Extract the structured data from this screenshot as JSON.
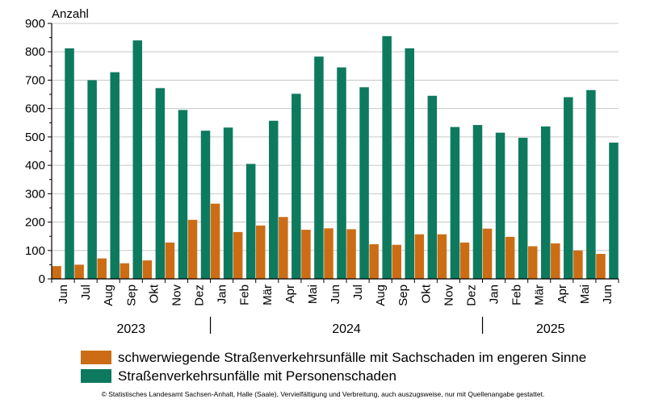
{
  "chart_data": {
    "type": "bar",
    "ylabel": "Anzahl",
    "ylim": [
      0,
      900
    ],
    "yticks": [
      0,
      100,
      200,
      300,
      400,
      500,
      600,
      700,
      800,
      900
    ],
    "grid": true,
    "legend_position": "bottom",
    "categories": [
      "Jun",
      "Jul",
      "Aug",
      "Sep",
      "Okt",
      "Nov",
      "Dez",
      "Jan",
      "Feb",
      "Mär",
      "Apr",
      "Mai",
      "Jun",
      "Jul",
      "Aug",
      "Sep",
      "Okt",
      "Nov",
      "Dez",
      "Jan",
      "Feb",
      "Mär",
      "Apr",
      "Mai",
      "Jun"
    ],
    "years": [
      {
        "label": "2023",
        "start": 0,
        "end": 6
      },
      {
        "label": "2024",
        "start": 7,
        "end": 18
      },
      {
        "label": "2025",
        "start": 19,
        "end": 24
      }
    ],
    "series": [
      {
        "name": "schwerwiegende Straßenverkehrsunfälle mit Sachschaden im engeren Sinne",
        "color": "#cc6d16",
        "values": [
          45,
          50,
          72,
          55,
          65,
          128,
          208,
          265,
          165,
          188,
          218,
          173,
          178,
          175,
          122,
          120,
          157,
          157,
          128,
          177,
          148,
          115,
          125,
          100,
          88
        ]
      },
      {
        "name": "Straßenverkehrsunfälle mit Personenschaden",
        "color": "#0d7a5e",
        "values": [
          812,
          700,
          728,
          840,
          672,
          595,
          522,
          533,
          405,
          557,
          652,
          783,
          745,
          675,
          855,
          812,
          645,
          535,
          542,
          515,
          497,
          537,
          640,
          665,
          480
        ]
      }
    ]
  },
  "footer": "© Statistisches Landesamt Sachsen-Anhalt, Halle (Saale), Vervielfältigung und Verbreitung, auch auszugsweise, nur mit Quellenangabe gestattet."
}
